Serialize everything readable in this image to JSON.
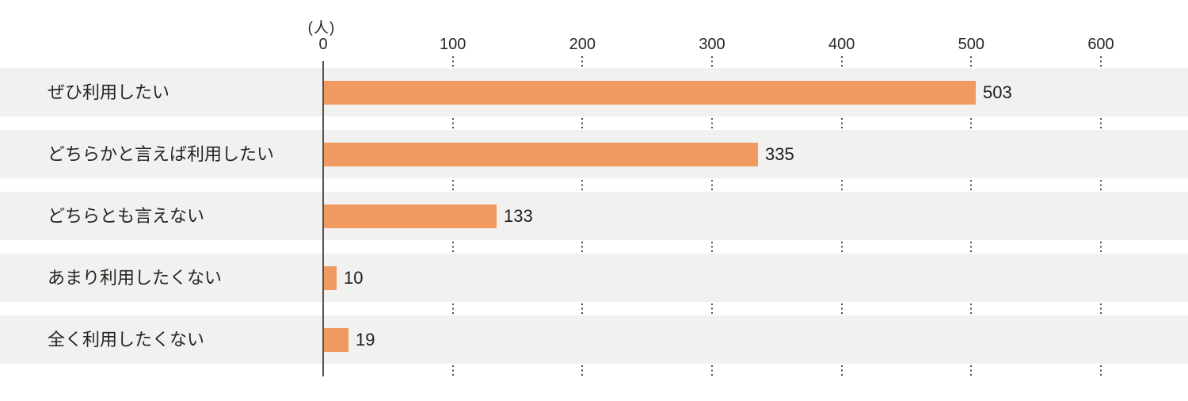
{
  "chart_data": {
    "type": "bar",
    "orientation": "horizontal",
    "unit": "(人)",
    "title": "",
    "xlabel": "",
    "ylabel": "",
    "categories": [
      "ぜひ利用したい",
      "どちらかと言えば利用したい",
      "どちらとも言えない",
      "あまり利用したくない",
      "全く利用したくない"
    ],
    "values": [
      503,
      335,
      133,
      10,
      19
    ],
    "x_ticks": [
      0,
      100,
      200,
      300,
      400,
      500,
      600
    ],
    "xlim": [
      0,
      600
    ],
    "grid": "dotted-ticks-in-gaps",
    "legend": "none",
    "colors": {
      "bar": "#f09a61",
      "row_background": "#f1f1f0",
      "axis_line": "#595551",
      "tick_dots": "#4c4c4c",
      "text": "#262321",
      "background": "#ffffff"
    }
  }
}
